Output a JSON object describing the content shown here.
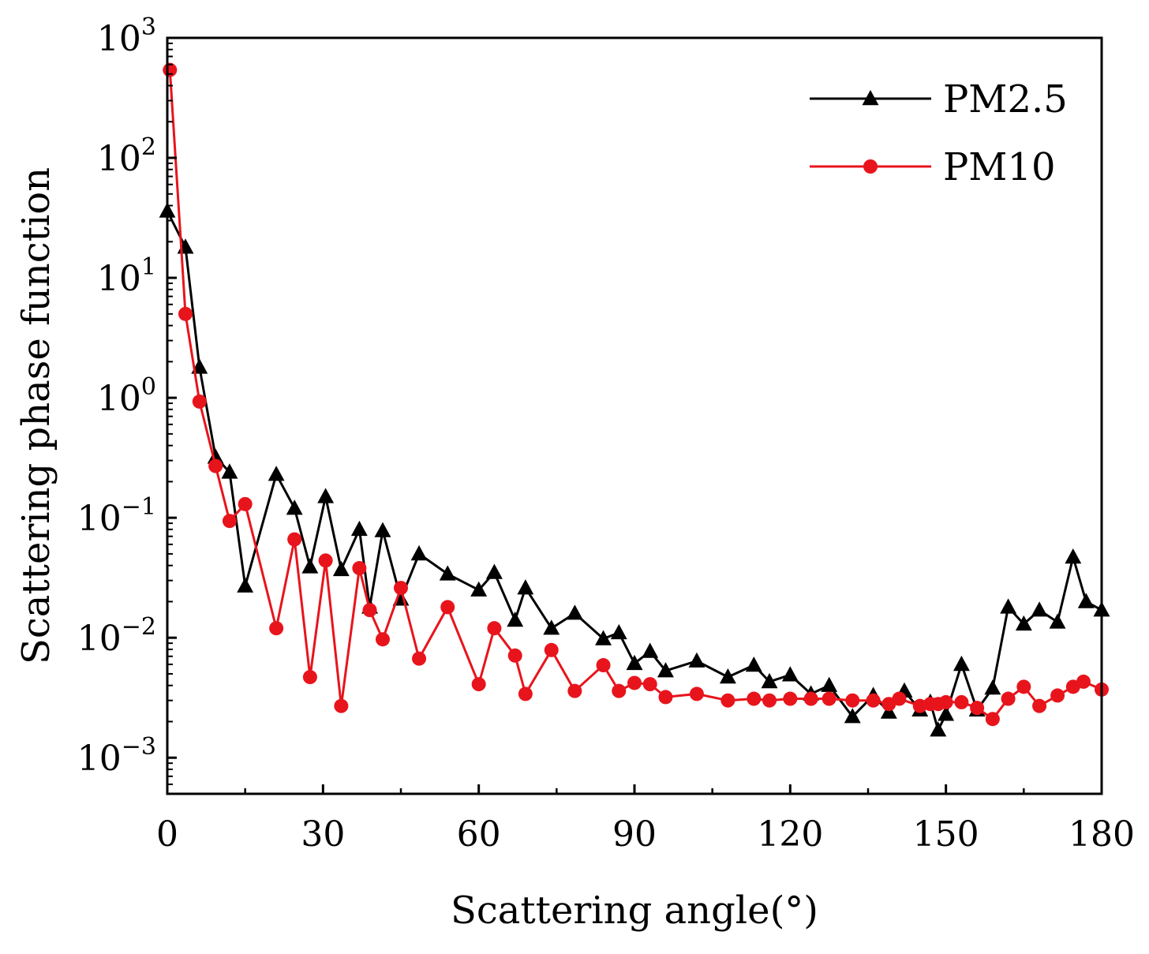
{
  "chart_data": {
    "type": "line",
    "title": "",
    "xlabel": "Scattering angle(°)",
    "ylabel": "Scattering phase function",
    "xlim": [
      0,
      180
    ],
    "ylim": [
      0.0005,
      1000
    ],
    "yscale": "log",
    "xticks": [
      0,
      30,
      60,
      90,
      120,
      150,
      180
    ],
    "xtick_labels": [
      "0",
      "30",
      "60",
      "90",
      "120",
      "150",
      "180"
    ],
    "yticks": [
      0.001,
      0.01,
      0.1,
      1,
      10,
      100,
      1000
    ],
    "ytick_labels": [
      {
        "base": "10",
        "exp": "−3"
      },
      {
        "base": "10",
        "exp": "−2"
      },
      {
        "base": "10",
        "exp": "−1"
      },
      {
        "base": "10",
        "exp": "0"
      },
      {
        "base": "10",
        "exp": "1"
      },
      {
        "base": "10",
        "exp": "2"
      },
      {
        "base": "10",
        "exp": "3"
      }
    ],
    "legend_position": "top-right",
    "series": [
      {
        "name": "PM2.5",
        "color": "#000000",
        "marker": "triangle",
        "x": [
          0,
          3.5,
          6.2,
          9.3,
          12,
          15,
          21,
          24.5,
          27.5,
          30.5,
          33.5,
          37,
          39,
          41.5,
          45,
          48.5,
          54,
          60,
          63,
          67,
          69,
          74,
          78.5,
          84,
          87,
          90,
          93,
          96,
          102,
          108,
          113,
          116,
          120,
          124,
          127.5,
          132,
          136,
          139,
          142,
          145,
          147,
          148.5,
          150,
          153,
          156,
          159,
          162,
          165,
          168,
          171.5,
          174.5,
          177,
          180
        ],
        "y": [
          36,
          18,
          1.8,
          0.32,
          0.24,
          0.027,
          0.23,
          0.12,
          0.039,
          0.15,
          0.037,
          0.08,
          0.018,
          0.078,
          0.021,
          0.05,
          0.034,
          0.025,
          0.035,
          0.014,
          0.026,
          0.012,
          0.016,
          0.0098,
          0.011,
          0.0061,
          0.0077,
          0.0053,
          0.0064,
          0.0047,
          0.0059,
          0.0043,
          0.0049,
          0.0034,
          0.004,
          0.0022,
          0.0033,
          0.0024,
          0.0036,
          0.0025,
          0.0029,
          0.0017,
          0.0023,
          0.006,
          0.0025,
          0.0038,
          0.018,
          0.013,
          0.017,
          0.0135,
          0.047,
          0.02,
          0.017
        ]
      },
      {
        "name": "PM10",
        "color": "#e8141c",
        "marker": "circle",
        "x": [
          0.5,
          3.5,
          6.2,
          9.3,
          12,
          15,
          21,
          24.5,
          27.5,
          30.5,
          33.5,
          37,
          39,
          41.5,
          45,
          48.5,
          54,
          60,
          63,
          67,
          69,
          74,
          78.5,
          84,
          87,
          90,
          93,
          96,
          102,
          108,
          113,
          116,
          120,
          124,
          127.5,
          132,
          136,
          139,
          141,
          145,
          147,
          148.5,
          150,
          153,
          156,
          159,
          162,
          165,
          168,
          171.5,
          174.5,
          176.5,
          180
        ],
        "y": [
          540,
          5,
          0.93,
          0.27,
          0.094,
          0.13,
          0.012,
          0.066,
          0.0047,
          0.044,
          0.0027,
          0.038,
          0.017,
          0.0097,
          0.026,
          0.0067,
          0.018,
          0.0041,
          0.012,
          0.0071,
          0.0034,
          0.0079,
          0.0036,
          0.0059,
          0.0036,
          0.0042,
          0.0041,
          0.0032,
          0.0034,
          0.003,
          0.0031,
          0.003,
          0.0031,
          0.0031,
          0.0031,
          0.003,
          0.003,
          0.0028,
          0.0031,
          0.0027,
          0.0028,
          0.0028,
          0.0029,
          0.0029,
          0.0026,
          0.0021,
          0.0031,
          0.0039,
          0.0027,
          0.0033,
          0.0039,
          0.0043,
          0.0037
        ]
      }
    ]
  }
}
